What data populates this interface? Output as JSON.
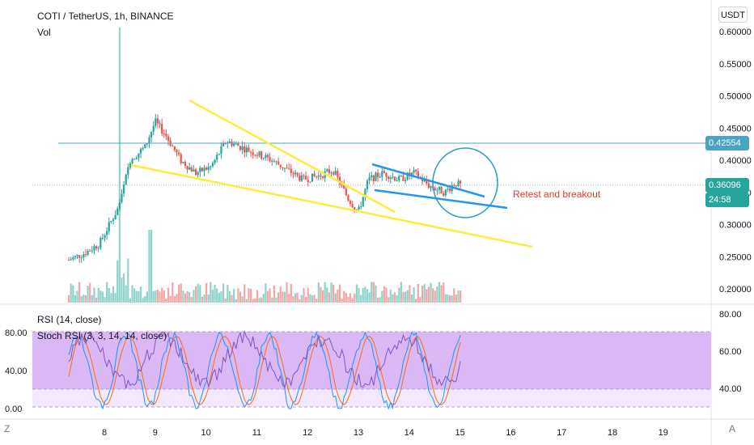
{
  "header": {
    "symbol": "COTI / TetherUS, 1h, BINANCE",
    "volume_label": "Vol",
    "currency": "USDT",
    "rsi_label": "RSI (14, close)",
    "stoch_label": "Stoch RSI (3, 3, 14, 14, close)"
  },
  "price_tags": {
    "marked_price": "0.42554",
    "last_price": "0.36096",
    "countdown": "24:58"
  },
  "annotation": "Retest and breakout",
  "corner": {
    "left": "Z",
    "right": "A"
  },
  "colors": {
    "up": "#26a69a",
    "down": "#ef5350",
    "trendline": "#ffeb3b",
    "channel": "#2196f3",
    "hline": "#4ba3c3",
    "rsi": "#7e57c2",
    "stoch_k": "#2196f3",
    "stoch_d": "#ff6d00",
    "band": "#d9b8f5"
  },
  "chart_data": {
    "type": "candlestick",
    "title": "COTI / TetherUS, 1h, BINANCE",
    "x_ticks": [
      "8",
      "9",
      "10",
      "11",
      "12",
      "13",
      "14",
      "15",
      "16",
      "17",
      "18",
      "19"
    ],
    "price_axis": {
      "ticks": [
        0.2,
        0.25,
        0.3,
        0.35,
        0.4,
        0.45,
        0.5,
        0.55,
        0.6
      ],
      "tick_labels": [
        "0.20000",
        "0.25000",
        "0.30000",
        "0.35000",
        "0.40000",
        "0.45000",
        "0.50000",
        "0.55000",
        "0.60000"
      ],
      "ylim": [
        0.18,
        0.62
      ]
    },
    "horizontal_line": 0.42554,
    "last_price": 0.36096,
    "close_series": {
      "x_day": [
        7.3,
        7.6,
        7.9,
        8.1,
        8.3,
        8.5,
        8.8,
        9.0,
        9.2,
        9.5,
        9.8,
        10.1,
        10.4,
        10.7,
        11.0,
        11.3,
        11.6,
        11.9,
        12.2,
        12.5,
        12.8,
        13.0,
        13.2,
        13.5,
        13.8,
        14.1,
        14.4,
        14.7,
        14.9,
        15.0
      ],
      "close": [
        0.245,
        0.255,
        0.27,
        0.3,
        0.33,
        0.4,
        0.42,
        0.46,
        0.44,
        0.4,
        0.38,
        0.39,
        0.43,
        0.42,
        0.41,
        0.4,
        0.385,
        0.37,
        0.375,
        0.385,
        0.34,
        0.32,
        0.37,
        0.38,
        0.37,
        0.38,
        0.36,
        0.35,
        0.365,
        0.361
      ]
    },
    "volume_panel": {
      "label": "Vol"
    },
    "rsi_panel": {
      "label": "RSI (14, close)",
      "ticks": [
        40,
        60,
        80
      ],
      "tick_labels": [
        "40.00",
        "60.00",
        "80.00"
      ],
      "band": [
        30,
        70
      ]
    },
    "stoch_panel": {
      "label": "Stoch RSI (3, 3, 14, 14, close)",
      "ticks": [
        0,
        40,
        80
      ],
      "tick_labels": [
        "0.00",
        "40.00",
        "80.00"
      ]
    }
  }
}
